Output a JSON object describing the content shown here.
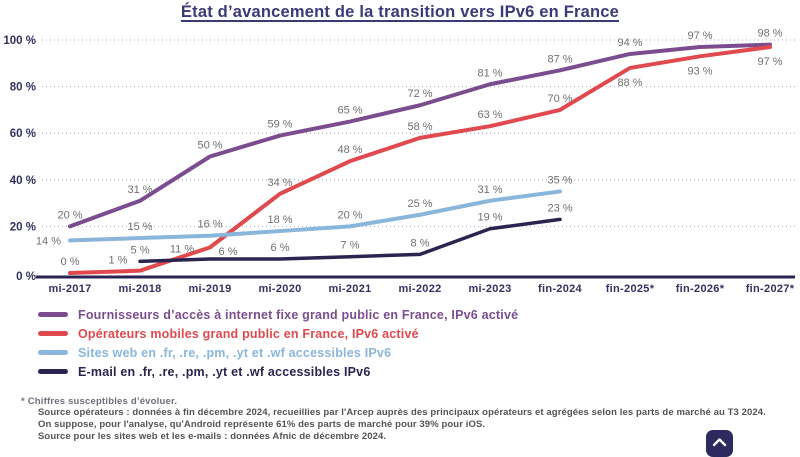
{
  "page": {
    "title": "État d’avancement de la transition vers IPv6 en France"
  },
  "chart_data": {
    "type": "line",
    "title": "État d’avancement de la transition vers IPv6 en France",
    "unit": "%",
    "categories": [
      "mi-2017",
      "mi-2018",
      "mi-2019",
      "mi-2020",
      "mi-2021",
      "mi-2022",
      "mi-2023",
      "fin-2024",
      "fin-2025*",
      "fin-2026*",
      "fin-2027*"
    ],
    "y_ticks": [
      0,
      20,
      40,
      60,
      80,
      100
    ],
    "ylim": [
      0,
      100
    ],
    "grid": "dotted-horizontal",
    "legend_position": "below-left",
    "series": [
      {
        "name": "fai-fixe",
        "label": "Fournisseurs d’accès à internet fixe grand public en France, IPv6 activé",
        "color": "#7b4d8f",
        "values": [
          20,
          31,
          50,
          59,
          65,
          72,
          81,
          87,
          94,
          97,
          98
        ],
        "label_overrides": {}
      },
      {
        "name": "operateurs-mobiles",
        "label": "Opérateurs mobiles grand public en France, IPv6 activé",
        "color": "#e0494e",
        "values": [
          0,
          1,
          11,
          34,
          48,
          58,
          63,
          70,
          88,
          93,
          97
        ],
        "label_overrides": {
          "1": "upleft",
          "2": "midleft",
          "8": "below",
          "9": "below",
          "10": "below"
        }
      },
      {
        "name": "sites-web",
        "label": "Sites web en .fr, .re, .pm, .yt et .wf accessibles IPv6",
        "color": "#8ab6db",
        "values": [
          14,
          15,
          16,
          18,
          20,
          25,
          31,
          35,
          null,
          null,
          null
        ],
        "label_overrides": {
          "0": "left"
        }
      },
      {
        "name": "email",
        "label": "E-mail en .fr, .re, .pm, .yt et .wf accessibles IPv6",
        "color": "#2a2550",
        "values": [
          null,
          5,
          6,
          6,
          7,
          8,
          19,
          23,
          null,
          null,
          null
        ],
        "label_overrides": {
          "2": "upright"
        }
      }
    ],
    "colors": {
      "axis": "#2a2550",
      "grid": "#b7b7cd",
      "tick_labels": "#32315f",
      "data_labels": "#6f6f6f",
      "title": "#3b3a78"
    }
  },
  "footnote": "* Chiffres susceptibles d’évoluer.",
  "source": {
    "lines": [
      "Source opérateurs : données à fin décembre 2024, recueillies par l'Arcep auprès des principaux opérateurs et agrégées selon  les parts de marché au T3 2024.",
      "On suppose, pour l'analyse, qu'Android représente 61% des parts de marché pour 39% pour iOS.",
      "Source pour les sites web et les e-mails : données Afnic de décembre 2024."
    ]
  },
  "scroll_top": {
    "icon": "chevron-up"
  }
}
